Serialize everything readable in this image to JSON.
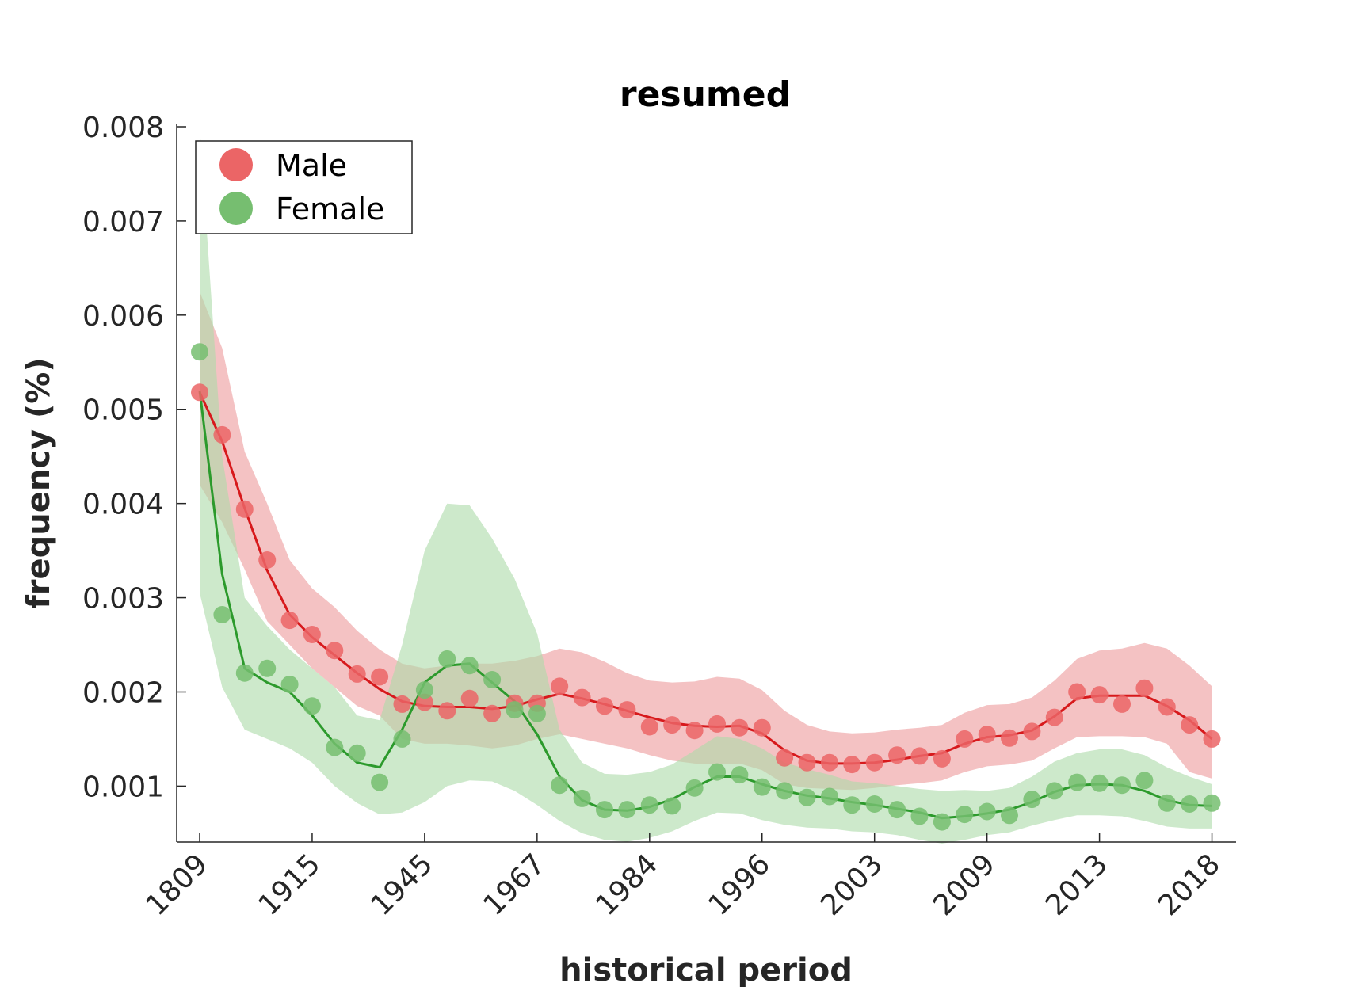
{
  "chart_data": {
    "type": "line",
    "title": "resumed",
    "xlabel": "historical period",
    "ylabel": "frequency (%)",
    "ylim": [
      0.00038,
      0.008
    ],
    "y_ticks": [
      "0.001",
      "0.002",
      "0.003",
      "0.004",
      "0.005",
      "0.006",
      "0.007",
      "0.008"
    ],
    "y_tick_values": [
      0.001,
      0.002,
      0.003,
      0.004,
      0.005,
      0.006,
      0.007,
      0.008
    ],
    "x_tick_labels": [
      "1809",
      "1915",
      "1945",
      "1967",
      "1984",
      "1996",
      "2003",
      "2009",
      "2013",
      "2018"
    ],
    "x_tick_index": [
      0,
      5,
      10,
      15,
      20,
      25,
      30,
      35,
      40,
      45
    ],
    "n_points": 46,
    "legend_position": "top-left",
    "grid": false,
    "series": [
      {
        "name": "Male",
        "color": "#d7191c",
        "fill_color": "#ec9a9b",
        "dot_color": "#eb6566",
        "points": [
          0.00518,
          0.00473,
          0.00394,
          0.0034,
          0.00276,
          0.00261,
          0.00244,
          0.00219,
          0.00216,
          0.00187,
          0.00189,
          0.0018,
          0.00193,
          0.00177,
          0.00188,
          0.00188,
          0.00206,
          0.00194,
          0.00185,
          0.00181,
          0.00163,
          0.00165,
          0.00159,
          0.00166,
          0.00162,
          0.00162,
          0.0013,
          0.00125,
          0.00125,
          0.00123,
          0.00125,
          0.00133,
          0.00132,
          0.00129,
          0.0015,
          0.00155,
          0.00151,
          0.00158,
          0.00173,
          0.002,
          0.00197,
          0.00187,
          0.00204,
          0.00184,
          0.00165,
          0.0015
        ],
        "line": [
          0.00518,
          0.00466,
          0.00395,
          0.00329,
          0.00282,
          0.00258,
          0.00239,
          0.0022,
          0.00203,
          0.0019,
          0.00185,
          0.00184,
          0.00184,
          0.00182,
          0.00185,
          0.00192,
          0.00198,
          0.00193,
          0.00187,
          0.0018,
          0.00173,
          0.00167,
          0.00164,
          0.00163,
          0.00164,
          0.00156,
          0.00138,
          0.00127,
          0.00124,
          0.00124,
          0.00125,
          0.00128,
          0.00132,
          0.00135,
          0.00145,
          0.00152,
          0.00154,
          0.00159,
          0.00174,
          0.00193,
          0.00196,
          0.00196,
          0.00196,
          0.00185,
          0.0017,
          0.0015
        ],
        "lower": [
          0.0042,
          0.0038,
          0.0033,
          0.00275,
          0.0025,
          0.00225,
          0.00205,
          0.00185,
          0.00175,
          0.0015,
          0.00145,
          0.00145,
          0.00143,
          0.0014,
          0.00143,
          0.0015,
          0.00155,
          0.0015,
          0.00145,
          0.0014,
          0.00133,
          0.00127,
          0.00124,
          0.00123,
          0.00124,
          0.00117,
          0.00102,
          0.00098,
          0.00097,
          0.00096,
          0.00098,
          0.00101,
          0.00103,
          0.00106,
          0.00115,
          0.00121,
          0.00123,
          0.00127,
          0.0014,
          0.00152,
          0.00153,
          0.00153,
          0.00152,
          0.00145,
          0.00115,
          0.00108
        ],
        "upper": [
          0.00625,
          0.00565,
          0.00455,
          0.004,
          0.0034,
          0.0031,
          0.0029,
          0.00265,
          0.00245,
          0.0023,
          0.00225,
          0.00228,
          0.0023,
          0.0023,
          0.00233,
          0.00238,
          0.00246,
          0.00242,
          0.00232,
          0.0022,
          0.00212,
          0.0021,
          0.00211,
          0.00216,
          0.00214,
          0.00202,
          0.0018,
          0.00165,
          0.00158,
          0.00156,
          0.00157,
          0.0016,
          0.00162,
          0.00165,
          0.00178,
          0.00186,
          0.00187,
          0.00194,
          0.00212,
          0.00235,
          0.00244,
          0.00246,
          0.00252,
          0.00246,
          0.00228,
          0.00206
        ]
      },
      {
        "name": "Female",
        "color": "#2c9a2c",
        "fill_color": "#acdaa8",
        "dot_color": "#76be70",
        "points": [
          0.00561,
          0.00282,
          0.0022,
          0.00225,
          0.00208,
          0.00185,
          0.00141,
          0.00135,
          0.00104,
          0.0015,
          0.00202,
          0.00235,
          0.00228,
          0.00213,
          0.00181,
          0.00177,
          0.00101,
          0.00087,
          0.00075,
          0.00075,
          0.0008,
          0.00079,
          0.00098,
          0.00115,
          0.00112,
          0.00099,
          0.00095,
          0.00088,
          0.00089,
          0.0008,
          0.00081,
          0.00075,
          0.00068,
          0.00062,
          0.0007,
          0.00073,
          0.00069,
          0.00086,
          0.00095,
          0.00104,
          0.00103,
          0.00101,
          0.00106,
          0.00082,
          0.00081,
          0.00082
        ],
        "line": [
          0.0052,
          0.00325,
          0.00225,
          0.0021,
          0.002,
          0.00175,
          0.00145,
          0.00125,
          0.0012,
          0.0016,
          0.0021,
          0.00228,
          0.0023,
          0.0021,
          0.0019,
          0.00155,
          0.0011,
          0.00085,
          0.00075,
          0.00074,
          0.00078,
          0.00086,
          0.00099,
          0.0011,
          0.0011,
          0.00102,
          0.00095,
          0.0009,
          0.00087,
          0.00083,
          0.0008,
          0.00076,
          0.00072,
          0.00066,
          0.00068,
          0.00071,
          0.00075,
          0.00083,
          0.00094,
          0.00101,
          0.00102,
          0.00101,
          0.00095,
          0.00085,
          0.0008,
          0.00079
        ],
        "lower": [
          0.00305,
          0.00205,
          0.0016,
          0.0015,
          0.0014,
          0.00125,
          0.001,
          0.00082,
          0.0007,
          0.00072,
          0.00083,
          0.001,
          0.00106,
          0.00105,
          0.00095,
          0.0008,
          0.00063,
          0.0005,
          0.00043,
          0.00041,
          0.00045,
          0.00052,
          0.00063,
          0.00072,
          0.00071,
          0.00064,
          0.00059,
          0.00056,
          0.00055,
          0.00052,
          0.00051,
          0.00048,
          0.00043,
          0.00039,
          0.00043,
          0.00048,
          0.00051,
          0.00058,
          0.00064,
          0.00069,
          0.00069,
          0.00068,
          0.00063,
          0.00057,
          0.00055,
          0.00055
        ],
        "upper": [
          0.008,
          0.0045,
          0.003,
          0.0027,
          0.00245,
          0.00225,
          0.00205,
          0.00175,
          0.0017,
          0.0025,
          0.0035,
          0.004,
          0.00398,
          0.00363,
          0.0032,
          0.00262,
          0.0016,
          0.00125,
          0.00113,
          0.00112,
          0.00115,
          0.00123,
          0.00138,
          0.00153,
          0.0015,
          0.0014,
          0.00125,
          0.00118,
          0.00112,
          0.00105,
          0.00103,
          0.001,
          0.00097,
          0.00095,
          0.00096,
          0.00095,
          0.00098,
          0.0011,
          0.00126,
          0.00135,
          0.00139,
          0.00139,
          0.00133,
          0.0012,
          0.0011,
          0.00102
        ]
      }
    ]
  }
}
